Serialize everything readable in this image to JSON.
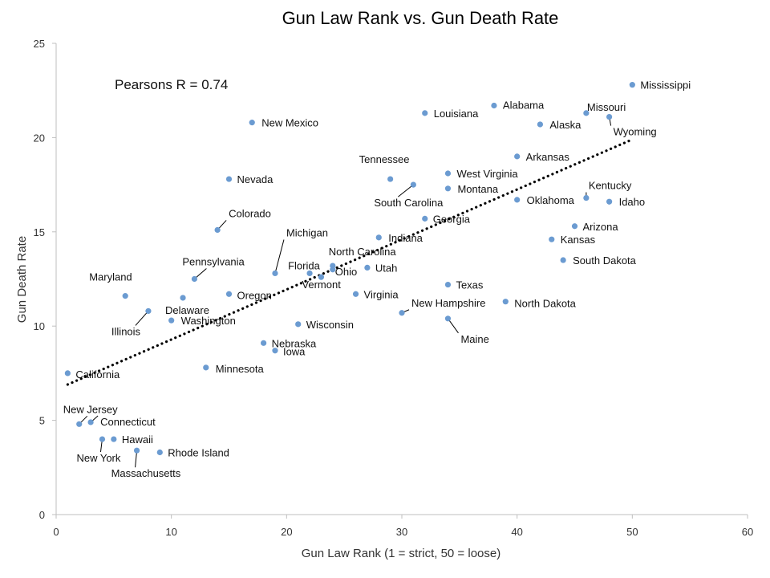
{
  "chart_data": {
    "type": "scatter",
    "title": "Gun Law Rank vs. Gun Death Rate",
    "xlabel": "Gun Law Rank (1 = strict, 50 = loose)",
    "ylabel": "Gun Death Rate",
    "xlim": [
      0,
      60
    ],
    "ylim": [
      0,
      25
    ],
    "xticks": [
      "0",
      "10",
      "20",
      "30",
      "40",
      "50",
      "60"
    ],
    "yticks": [
      "0",
      "5",
      "10",
      "15",
      "20",
      "25"
    ],
    "grid": false,
    "legend": "none",
    "point_color": "#6b9bd1",
    "annotation": "Pearsons  R = 0.74",
    "trendline": {
      "style": "dotted",
      "color": "#000000",
      "x": [
        1,
        50
      ],
      "y": [
        6.9,
        19.9
      ]
    },
    "points": [
      {
        "label": "California",
        "x": 1,
        "y": 7.5
      },
      {
        "label": "New Jersey",
        "x": 2,
        "y": 4.8
      },
      {
        "label": "Connecticut",
        "x": 3,
        "y": 4.9
      },
      {
        "label": "New York",
        "x": 4,
        "y": 4.0
      },
      {
        "label": "Hawaii",
        "x": 5,
        "y": 4.0
      },
      {
        "label": "Maryland",
        "x": 6,
        "y": 11.6
      },
      {
        "label": "Massachusetts",
        "x": 7,
        "y": 3.4
      },
      {
        "label": "Illinois",
        "x": 8,
        "y": 10.8
      },
      {
        "label": "Rhode Island",
        "x": 9,
        "y": 3.3
      },
      {
        "label": "Washington",
        "x": 10,
        "y": 10.3
      },
      {
        "label": "Delaware",
        "x": 11,
        "y": 11.5
      },
      {
        "label": "Pennsylvania",
        "x": 12,
        "y": 12.5
      },
      {
        "label": "Minnesota",
        "x": 13,
        "y": 7.8
      },
      {
        "label": "Colorado",
        "x": 14,
        "y": 15.1
      },
      {
        "label": "Nevada",
        "x": 15,
        "y": 17.8
      },
      {
        "label": "Oregon",
        "x": 15,
        "y": 11.7
      },
      {
        "label": "New Mexico",
        "x": 17,
        "y": 20.8
      },
      {
        "label": "Nebraska",
        "x": 18,
        "y": 9.1
      },
      {
        "label": "Iowa",
        "x": 19,
        "y": 8.7
      },
      {
        "label": "Michigan",
        "x": 19,
        "y": 12.8
      },
      {
        "label": "Wisconsin",
        "x": 21,
        "y": 10.1
      },
      {
        "label": "Florida",
        "x": 22,
        "y": 12.8
      },
      {
        "label": "Vermont",
        "x": 23,
        "y": 12.6
      },
      {
        "label": "Ohio",
        "x": 24,
        "y": 13.0
      },
      {
        "label": "North Carolina",
        "x": 24,
        "y": 13.2
      },
      {
        "label": "Virginia",
        "x": 26,
        "y": 11.7
      },
      {
        "label": "Utah",
        "x": 27,
        "y": 13.1
      },
      {
        "label": "Indiana",
        "x": 28,
        "y": 14.7
      },
      {
        "label": "Tennessee",
        "x": 29,
        "y": 17.8
      },
      {
        "label": "New Hampshire",
        "x": 30,
        "y": 10.7
      },
      {
        "label": "South  Carolina",
        "x": 31,
        "y": 17.5
      },
      {
        "label": "Louisiana",
        "x": 32,
        "y": 21.3
      },
      {
        "label": "Georgia",
        "x": 32,
        "y": 15.7
      },
      {
        "label": "West Virginia",
        "x": 34,
        "y": 18.1
      },
      {
        "label": "Montana",
        "x": 34,
        "y": 17.3
      },
      {
        "label": "Texas",
        "x": 34,
        "y": 12.2
      },
      {
        "label": "Maine",
        "x": 34,
        "y": 10.4
      },
      {
        "label": "Alabama",
        "x": 38,
        "y": 21.7
      },
      {
        "label": "North Dakota",
        "x": 39,
        "y": 11.3
      },
      {
        "label": "Arkansas",
        "x": 40,
        "y": 19.0
      },
      {
        "label": "Oklahoma",
        "x": 40,
        "y": 16.7
      },
      {
        "label": "Alaska",
        "x": 42,
        "y": 20.7
      },
      {
        "label": "Kansas",
        "x": 43,
        "y": 14.6
      },
      {
        "label": "Arizona",
        "x": 45,
        "y": 15.3
      },
      {
        "label": "South Dakota",
        "x": 44,
        "y": 13.5
      },
      {
        "label": "Missouri",
        "x": 46,
        "y": 21.3
      },
      {
        "label": "Kentucky",
        "x": 46,
        "y": 16.8
      },
      {
        "label": "Wyoming",
        "x": 48,
        "y": 21.1
      },
      {
        "label": "Idaho",
        "x": 48,
        "y": 16.6
      },
      {
        "label": "Mississippi",
        "x": 50,
        "y": 22.8
      }
    ]
  }
}
